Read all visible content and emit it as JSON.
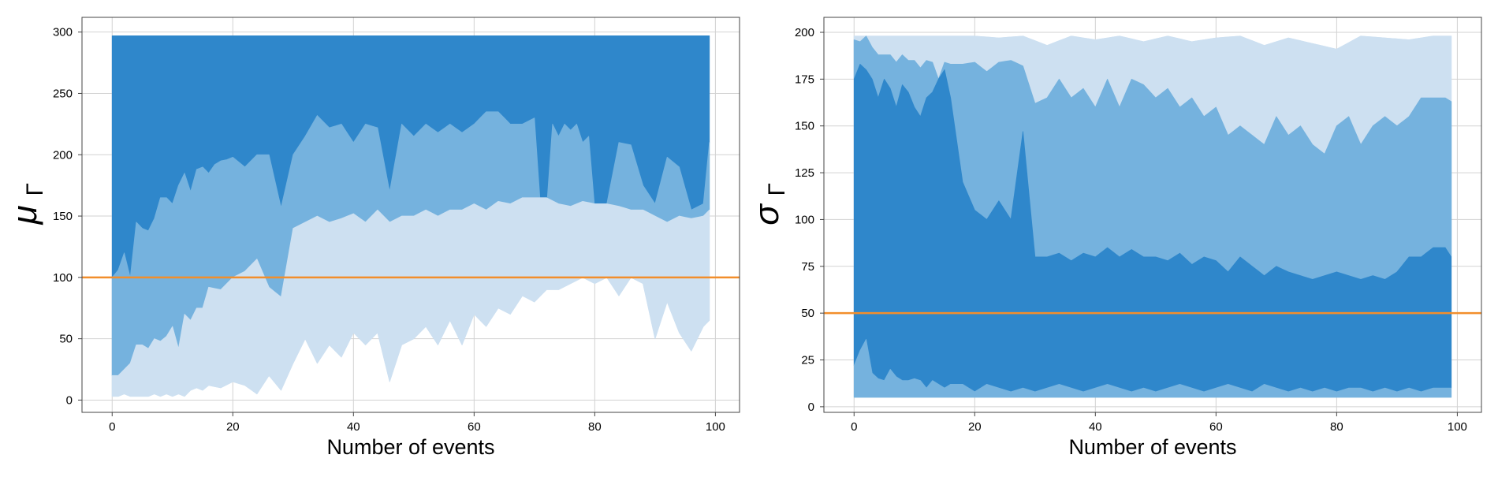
{
  "chart_data": [
    {
      "type": "area",
      "ylabel_symbol": "μ",
      "ylabel_subscript": "Γ",
      "xlabel": "Number of events",
      "xlim": [
        -5,
        104
      ],
      "ylim": [
        -10,
        312
      ],
      "xticks": [
        0,
        20,
        40,
        60,
        80,
        100
      ],
      "yticks": [
        0,
        50,
        100,
        150,
        200,
        250,
        300
      ],
      "grid": true,
      "reference_line": {
        "y": 100,
        "color": "#f28e2b"
      },
      "colors": {
        "dark": "#2f87cb",
        "medium": "#75b2de",
        "light": "#cde0f1"
      },
      "bands": {
        "outer_upper": {
          "x": [
            0,
            99
          ],
          "values": [
            297,
            297
          ]
        },
        "inner_upper": {
          "x": [
            0,
            1,
            2,
            3,
            4,
            5,
            6,
            7,
            8,
            9,
            10,
            11,
            12,
            13,
            14,
            15,
            16,
            17,
            18,
            19,
            20,
            22,
            24,
            26,
            28,
            30,
            32,
            34,
            36,
            38,
            40,
            42,
            44,
            46,
            48,
            50,
            52,
            54,
            56,
            58,
            60,
            62,
            64,
            66,
            68,
            70,
            71,
            72,
            73,
            74,
            75,
            76,
            77,
            78,
            79,
            80,
            81,
            82,
            84,
            86,
            88,
            90,
            92,
            94,
            96,
            98,
            99
          ],
          "values": [
            100,
            106,
            120,
            100,
            145,
            140,
            138,
            148,
            165,
            165,
            160,
            175,
            185,
            170,
            188,
            190,
            185,
            192,
            195,
            196,
            198,
            190,
            200,
            200,
            157,
            200,
            215,
            232,
            222,
            225,
            210,
            225,
            222,
            170,
            225,
            215,
            225,
            218,
            225,
            218,
            225,
            235,
            235,
            225,
            225,
            230,
            158,
            155,
            225,
            215,
            225,
            220,
            225,
            210,
            215,
            156,
            155,
            160,
            210,
            208,
            175,
            160,
            198,
            190,
            155,
            160,
            210
          ]
        },
        "inner_lower": {
          "x": [
            0,
            1,
            2,
            3,
            4,
            5,
            6,
            7,
            8,
            9,
            10,
            11,
            12,
            13,
            14,
            15,
            16,
            18,
            20,
            22,
            24,
            26,
            28,
            30,
            32,
            34,
            36,
            38,
            40,
            42,
            44,
            46,
            48,
            50,
            52,
            54,
            56,
            58,
            60,
            62,
            64,
            66,
            68,
            70,
            72,
            74,
            76,
            78,
            80,
            82,
            84,
            86,
            88,
            90,
            92,
            94,
            96,
            98,
            99
          ],
          "values": [
            20,
            20,
            25,
            30,
            45,
            45,
            42,
            50,
            48,
            52,
            60,
            42,
            70,
            65,
            75,
            75,
            92,
            90,
            100,
            105,
            115,
            92,
            84,
            140,
            145,
            150,
            145,
            148,
            152,
            145,
            155,
            145,
            150,
            150,
            155,
            150,
            155,
            155,
            160,
            155,
            162,
            160,
            165,
            165,
            165,
            160,
            158,
            162,
            160,
            160,
            158,
            155,
            155,
            150,
            145,
            150,
            148,
            150,
            155
          ]
        },
        "outer_lower": {
          "x": [
            0,
            1,
            2,
            3,
            4,
            5,
            6,
            7,
            8,
            9,
            10,
            11,
            12,
            13,
            14,
            15,
            16,
            18,
            20,
            22,
            24,
            26,
            28,
            30,
            32,
            34,
            36,
            38,
            40,
            42,
            44,
            46,
            48,
            50,
            52,
            54,
            56,
            58,
            60,
            62,
            64,
            66,
            68,
            70,
            72,
            74,
            76,
            78,
            80,
            82,
            84,
            86,
            88,
            90,
            92,
            94,
            96,
            98,
            99
          ],
          "values": [
            3,
            3,
            5,
            3,
            3,
            3,
            3,
            5,
            3,
            5,
            3,
            5,
            3,
            8,
            10,
            8,
            12,
            10,
            15,
            12,
            5,
            20,
            8,
            30,
            50,
            30,
            45,
            35,
            55,
            45,
            55,
            15,
            45,
            50,
            60,
            45,
            65,
            45,
            70,
            60,
            75,
            70,
            85,
            80,
            90,
            90,
            95,
            100,
            95,
            100,
            85,
            100,
            95,
            50,
            80,
            55,
            40,
            60,
            65
          ]
        }
      }
    },
    {
      "type": "area",
      "ylabel_symbol": "σ",
      "ylabel_subscript": "Γ",
      "xlabel": "Number of events",
      "xlim": [
        -5,
        104
      ],
      "ylim": [
        -3,
        208
      ],
      "xticks": [
        0,
        20,
        40,
        60,
        80,
        100
      ],
      "yticks": [
        0,
        25,
        50,
        75,
        100,
        125,
        150,
        175,
        200
      ],
      "grid": true,
      "reference_line": {
        "y": 50,
        "color": "#f28e2b"
      },
      "colors": {
        "dark": "#2f87cb",
        "medium": "#75b2de",
        "light": "#cde0f1"
      },
      "bands": {
        "outer_upper": {
          "x": [
            0,
            4,
            8,
            12,
            16,
            20,
            24,
            28,
            32,
            36,
            40,
            44,
            48,
            52,
            56,
            60,
            64,
            68,
            72,
            76,
            80,
            84,
            88,
            92,
            96,
            99
          ],
          "values": [
            198,
            198,
            198,
            198,
            198,
            198,
            197,
            198,
            193,
            198,
            196,
            198,
            195,
            198,
            195,
            197,
            198,
            193,
            197,
            194,
            191,
            198,
            197,
            196,
            198,
            198
          ]
        },
        "inner_upper": {
          "x": [
            0,
            1,
            2,
            3,
            4,
            5,
            6,
            7,
            8,
            9,
            10,
            11,
            12,
            13,
            14,
            15,
            16,
            18,
            20,
            22,
            24,
            26,
            28,
            30,
            32,
            34,
            36,
            38,
            40,
            42,
            44,
            46,
            48,
            50,
            52,
            54,
            56,
            58,
            60,
            62,
            64,
            66,
            68,
            70,
            72,
            74,
            76,
            78,
            80,
            82,
            84,
            86,
            88,
            90,
            92,
            94,
            96,
            98,
            99
          ],
          "values": [
            196,
            195,
            198,
            192,
            188,
            188,
            188,
            184,
            188,
            185,
            185,
            181,
            185,
            184,
            175,
            184,
            183,
            183,
            184,
            179,
            184,
            185,
            182,
            162,
            165,
            175,
            165,
            170,
            160,
            175,
            160,
            175,
            172,
            165,
            170,
            160,
            165,
            155,
            160,
            145,
            150,
            145,
            140,
            155,
            145,
            150,
            140,
            135,
            150,
            155,
            140,
            150,
            155,
            150,
            155,
            165,
            165,
            165,
            163
          ]
        },
        "inner_lower": {
          "x": [
            0,
            1,
            2,
            3,
            4,
            5,
            6,
            7,
            8,
            9,
            10,
            11,
            12,
            13,
            14,
            15,
            16,
            18,
            20,
            22,
            24,
            26,
            28,
            30,
            32,
            34,
            36,
            38,
            40,
            42,
            44,
            46,
            48,
            50,
            52,
            54,
            56,
            58,
            60,
            62,
            64,
            66,
            68,
            70,
            72,
            74,
            76,
            78,
            80,
            82,
            84,
            86,
            88,
            90,
            92,
            94,
            96,
            98,
            99
          ],
          "values": [
            175,
            183,
            180,
            175,
            165,
            175,
            170,
            160,
            172,
            168,
            160,
            155,
            165,
            168,
            175,
            180,
            165,
            120,
            105,
            100,
            110,
            100,
            147,
            80,
            80,
            82,
            78,
            82,
            80,
            85,
            80,
            84,
            80,
            80,
            78,
            82,
            76,
            80,
            78,
            72,
            80,
            75,
            70,
            75,
            72,
            70,
            68,
            70,
            72,
            70,
            68,
            70,
            68,
            72,
            80,
            80,
            85,
            85,
            80
          ]
        },
        "outer_lower": {
          "x": [
            0,
            1,
            2,
            3,
            4,
            5,
            6,
            7,
            8,
            9,
            10,
            11,
            12,
            13,
            14,
            15,
            16,
            18,
            20,
            22,
            24,
            26,
            28,
            30,
            32,
            34,
            36,
            38,
            40,
            42,
            44,
            46,
            48,
            50,
            52,
            54,
            56,
            58,
            60,
            62,
            64,
            66,
            68,
            70,
            72,
            74,
            76,
            78,
            80,
            82,
            84,
            86,
            88,
            90,
            92,
            94,
            96,
            98,
            99
          ],
          "values": [
            22,
            30,
            36,
            18,
            15,
            14,
            20,
            16,
            14,
            14,
            15,
            14,
            10,
            14,
            12,
            10,
            12,
            12,
            8,
            12,
            10,
            8,
            10,
            8,
            10,
            12,
            10,
            8,
            10,
            12,
            10,
            8,
            10,
            8,
            10,
            12,
            10,
            8,
            10,
            12,
            10,
            8,
            12,
            10,
            8,
            10,
            8,
            10,
            8,
            10,
            10,
            8,
            10,
            8,
            10,
            8,
            10,
            10,
            10
          ]
        },
        "floor": {
          "x": [
            0,
            99
          ],
          "values": [
            5,
            5
          ]
        }
      }
    }
  ]
}
